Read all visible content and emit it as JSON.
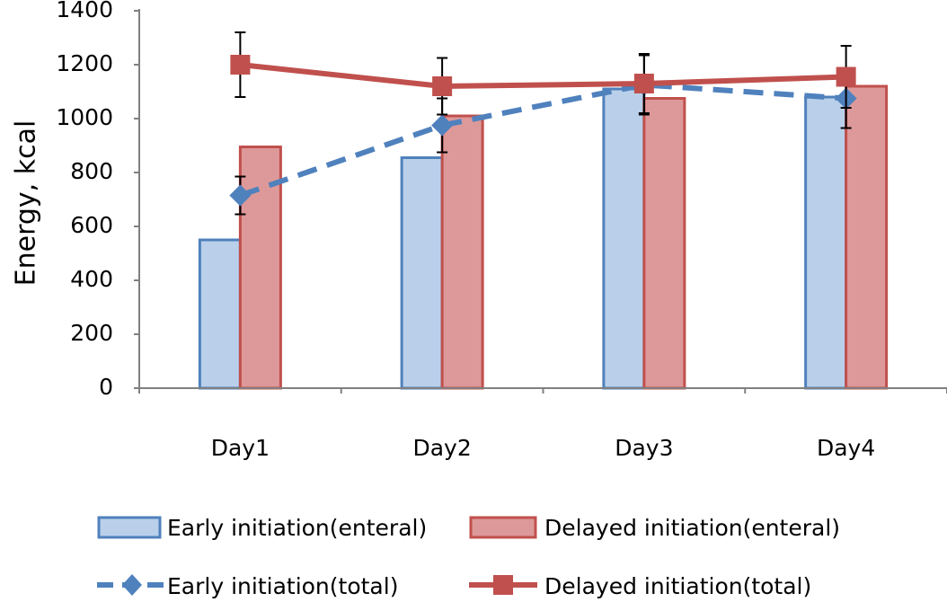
{
  "chart_data": {
    "type": "bar+line",
    "title": "",
    "xlabel": "",
    "ylabel": "Energy, kcal",
    "ylim": [
      0,
      1400
    ],
    "yticks": [
      0,
      200,
      400,
      600,
      800,
      1000,
      1200,
      1400
    ],
    "categories": [
      "Day1",
      "Day2",
      "Day3",
      "Day4"
    ],
    "bar_series": [
      {
        "name": "Early initiation(enteral)",
        "values": [
          550,
          855,
          1110,
          1080
        ],
        "fill": "#bad0ea",
        "stroke": "#4f81bd"
      },
      {
        "name": "Delayed initiation(enteral)",
        "values": [
          895,
          1010,
          1075,
          1120
        ],
        "fill": "#dd9999",
        "stroke": "#c0504d"
      }
    ],
    "line_series": [
      {
        "name": "Early initiation(total)",
        "values": [
          715,
          975,
          1125,
          1075
        ],
        "error": [
          70,
          100,
          110,
          110
        ],
        "color": "#4f81bd",
        "marker": "diamond",
        "dash": true
      },
      {
        "name": "Delayed initiation(total)",
        "values": [
          1200,
          1120,
          1130,
          1155
        ],
        "error": [
          120,
          105,
          110,
          115
        ],
        "color": "#c0504d",
        "marker": "square",
        "dash": false
      }
    ],
    "legend_position": "bottom",
    "grid": false
  }
}
